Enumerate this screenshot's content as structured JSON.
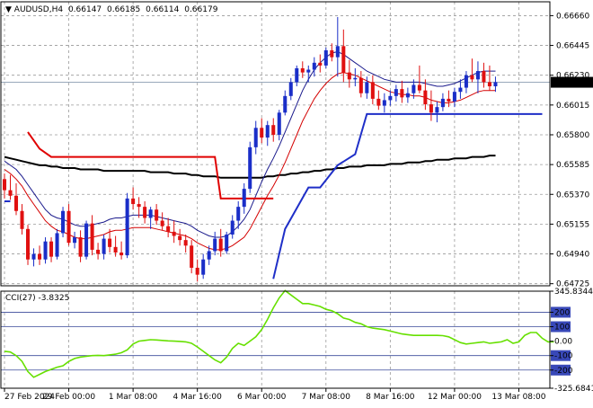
{
  "chart_data": [
    {
      "type": "candlestick",
      "header": {
        "symbol": "AUDUSD,H4",
        "values": [
          "0.66147",
          "0.66185",
          "0.66114",
          "0.66179"
        ]
      },
      "y_ticks": [
        "0.66660",
        "0.66445",
        "0.66230",
        "0.66015",
        "0.65800",
        "0.65585",
        "0.65370",
        "0.65155",
        "0.64940",
        "0.64725"
      ],
      "ylim": [
        0.6471,
        0.6676
      ],
      "current_price": "0.66179",
      "x_ticks": [
        "27 Feb 2024",
        "29 Feb 00:00",
        "1 Mar 08:00",
        "4 Mar 16:00",
        "6 Mar 00:00",
        "7 Mar 08:00",
        "8 Mar 16:00",
        "12 Mar 00:00",
        "13 Mar 08:00"
      ],
      "x_tick_bar_index": [
        0,
        11,
        22,
        33,
        44,
        55,
        66,
        77,
        88
      ],
      "candles": [
        [
          0.6548,
          0.6552,
          0.6534,
          0.654
        ],
        [
          0.654,
          0.6551,
          0.6533,
          0.6536
        ],
        [
          0.6536,
          0.6545,
          0.6522,
          0.6525
        ],
        [
          0.6525,
          0.653,
          0.6508,
          0.6512
        ],
        [
          0.6512,
          0.6515,
          0.6486,
          0.649
        ],
        [
          0.649,
          0.6498,
          0.6485,
          0.6494
        ],
        [
          0.6494,
          0.65,
          0.6486,
          0.649
        ],
        [
          0.649,
          0.6506,
          0.6487,
          0.6503
        ],
        [
          0.6503,
          0.6506,
          0.6488,
          0.6492
        ],
        [
          0.6492,
          0.6512,
          0.649,
          0.6509
        ],
        [
          0.6509,
          0.6528,
          0.6506,
          0.6525
        ],
        [
          0.6525,
          0.653,
          0.65,
          0.6502
        ],
        [
          0.6502,
          0.651,
          0.6498,
          0.6506
        ],
        [
          0.6506,
          0.6511,
          0.6488,
          0.6492
        ],
        [
          0.6492,
          0.6518,
          0.649,
          0.6516
        ],
        [
          0.6516,
          0.6522,
          0.6493,
          0.6497
        ],
        [
          0.6497,
          0.6502,
          0.649,
          0.6494
        ],
        [
          0.6494,
          0.6508,
          0.649,
          0.6505
        ],
        [
          0.6505,
          0.6512,
          0.6495,
          0.6499
        ],
        [
          0.6499,
          0.6507,
          0.6492,
          0.6495
        ],
        [
          0.6495,
          0.6503,
          0.649,
          0.6493
        ],
        [
          0.6493,
          0.6538,
          0.6491,
          0.6534
        ],
        [
          0.6534,
          0.6542,
          0.6526,
          0.653
        ],
        [
          0.653,
          0.6535,
          0.652,
          0.6528
        ],
        [
          0.6528,
          0.6532,
          0.6516,
          0.652
        ],
        [
          0.652,
          0.6528,
          0.6512,
          0.6526
        ],
        [
          0.6526,
          0.653,
          0.6515,
          0.6518
        ],
        [
          0.6518,
          0.6524,
          0.6511,
          0.6514
        ],
        [
          0.6514,
          0.652,
          0.6506,
          0.651
        ],
        [
          0.651,
          0.6518,
          0.6502,
          0.6507
        ],
        [
          0.6507,
          0.6512,
          0.65,
          0.6504
        ],
        [
          0.6504,
          0.6508,
          0.6495,
          0.65
        ],
        [
          0.65,
          0.6504,
          0.648,
          0.6484
        ],
        [
          0.6484,
          0.649,
          0.6474,
          0.6479
        ],
        [
          0.6479,
          0.6494,
          0.6476,
          0.649
        ],
        [
          0.649,
          0.65,
          0.6486,
          0.6496
        ],
        [
          0.6496,
          0.651,
          0.6493,
          0.6505
        ],
        [
          0.6505,
          0.6512,
          0.6492,
          0.6496
        ],
        [
          0.6496,
          0.651,
          0.6494,
          0.6508
        ],
        [
          0.6508,
          0.6522,
          0.6505,
          0.6518
        ],
        [
          0.6518,
          0.6532,
          0.6512,
          0.6528
        ],
        [
          0.6528,
          0.6545,
          0.6523,
          0.6541
        ],
        [
          0.6541,
          0.6575,
          0.6538,
          0.6571
        ],
        [
          0.6571,
          0.659,
          0.6566,
          0.6585
        ],
        [
          0.6585,
          0.6592,
          0.6574,
          0.6578
        ],
        [
          0.6578,
          0.659,
          0.6572,
          0.6587
        ],
        [
          0.6587,
          0.6592,
          0.6575,
          0.658
        ],
        [
          0.658,
          0.6598,
          0.6576,
          0.6596
        ],
        [
          0.6596,
          0.6612,
          0.6594,
          0.6608
        ],
        [
          0.6608,
          0.6621,
          0.6605,
          0.6618
        ],
        [
          0.6618,
          0.663,
          0.6615,
          0.6628
        ],
        [
          0.6628,
          0.6633,
          0.6621,
          0.6625
        ],
        [
          0.6625,
          0.663,
          0.6618,
          0.6627
        ],
        [
          0.6627,
          0.6636,
          0.6622,
          0.6632
        ],
        [
          0.6632,
          0.6638,
          0.6625,
          0.663
        ],
        [
          0.663,
          0.6643,
          0.6628,
          0.6641
        ],
        [
          0.6641,
          0.6646,
          0.6633,
          0.6636
        ],
        [
          0.6636,
          0.6665,
          0.6622,
          0.6644
        ],
        [
          0.6644,
          0.6656,
          0.6618,
          0.6625
        ],
        [
          0.6625,
          0.6634,
          0.6614,
          0.662
        ],
        [
          0.662,
          0.6628,
          0.6615,
          0.6621
        ],
        [
          0.6621,
          0.6626,
          0.6607,
          0.661
        ],
        [
          0.661,
          0.6622,
          0.6606,
          0.6618
        ],
        [
          0.6618,
          0.6623,
          0.6602,
          0.6606
        ],
        [
          0.6606,
          0.6612,
          0.6598,
          0.6601
        ],
        [
          0.6601,
          0.661,
          0.6596,
          0.6605
        ],
        [
          0.6605,
          0.6612,
          0.6601,
          0.6608
        ],
        [
          0.6608,
          0.6616,
          0.6604,
          0.6613
        ],
        [
          0.6613,
          0.6619,
          0.6603,
          0.6607
        ],
        [
          0.6607,
          0.6614,
          0.6603,
          0.661
        ],
        [
          0.661,
          0.662,
          0.6606,
          0.6616
        ],
        [
          0.6616,
          0.663,
          0.661,
          0.6612
        ],
        [
          0.6612,
          0.662,
          0.6598,
          0.6602
        ],
        [
          0.6602,
          0.6612,
          0.659,
          0.6596
        ],
        [
          0.6596,
          0.6604,
          0.6589,
          0.66
        ],
        [
          0.66,
          0.661,
          0.6597,
          0.6606
        ],
        [
          0.6606,
          0.6612,
          0.66,
          0.6604
        ],
        [
          0.6604,
          0.6614,
          0.66,
          0.6611
        ],
        [
          0.6611,
          0.662,
          0.6606,
          0.6614
        ],
        [
          0.6614,
          0.6626,
          0.661,
          0.6623
        ],
        [
          0.6623,
          0.6635,
          0.6618,
          0.662
        ],
        [
          0.662,
          0.6633,
          0.661,
          0.6626
        ],
        [
          0.6626,
          0.6632,
          0.6614,
          0.6618
        ],
        [
          0.6618,
          0.663,
          0.6612,
          0.6615
        ],
        [
          0.6615,
          0.6622,
          0.6611,
          0.6618
        ]
      ],
      "series": [
        {
          "color": "#000000",
          "values": [
            0.6564,
            0.6563,
            0.6562,
            0.6561,
            0.656,
            0.6559,
            0.6558,
            0.6558,
            0.6557,
            0.6557,
            0.6556,
            0.6556,
            0.6556,
            0.6555,
            0.6555,
            0.6555,
            0.6555,
            0.6554,
            0.6554,
            0.6554,
            0.6554,
            0.6554,
            0.6554,
            0.6554,
            0.6554,
            0.6553,
            0.6553,
            0.6553,
            0.6553,
            0.6552,
            0.6552,
            0.6552,
            0.6551,
            0.6551,
            0.655,
            0.655,
            0.655,
            0.6549,
            0.6549,
            0.6549,
            0.6549,
            0.6549,
            0.6549,
            0.6549,
            0.6549,
            0.655,
            0.655,
            0.6551,
            0.6551,
            0.6552,
            0.6552,
            0.6553,
            0.6553,
            0.6554,
            0.6554,
            0.6555,
            0.6555,
            0.6556,
            0.6556,
            0.6557,
            0.6557,
            0.6557,
            0.6558,
            0.6558,
            0.6558,
            0.6558,
            0.6559,
            0.6559,
            0.6559,
            0.656,
            0.656,
            0.656,
            0.6561,
            0.6561,
            0.6562,
            0.6562,
            0.6562,
            0.6563,
            0.6563,
            0.6563,
            0.6564,
            0.6564,
            0.6564,
            0.6565,
            0.6565
          ]
        },
        {
          "color": "#d40000",
          "values": [
            0.6555,
            0.6552,
            0.6548,
            0.6543,
            0.6536,
            0.653,
            0.6524,
            0.6518,
            0.6514,
            0.6511,
            0.651,
            0.6508,
            0.6506,
            0.6505,
            0.6505,
            0.6506,
            0.6507,
            0.6508,
            0.651,
            0.6511,
            0.6511,
            0.6512,
            0.6513,
            0.6513,
            0.6513,
            0.6513,
            0.6512,
            0.6511,
            0.651,
            0.6509,
            0.6508,
            0.6507,
            0.6505,
            0.6502,
            0.65,
            0.6498,
            0.6497,
            0.6497,
            0.6498,
            0.65,
            0.6503,
            0.6506,
            0.6512,
            0.652,
            0.6528,
            0.6536,
            0.6543,
            0.6551,
            0.656,
            0.657,
            0.658,
            0.659,
            0.6598,
            0.6606,
            0.6612,
            0.6617,
            0.6621,
            0.6624,
            0.6625,
            0.6624,
            0.6623,
            0.6621,
            0.6619,
            0.6617,
            0.6615,
            0.6613,
            0.6611,
            0.661,
            0.6609,
            0.6609,
            0.6608,
            0.6608,
            0.6607,
            0.6605,
            0.6604,
            0.6603,
            0.6603,
            0.6604,
            0.6605,
            0.6607,
            0.6609,
            0.6611,
            0.6612,
            0.6612,
            0.6612
          ]
        },
        {
          "color": "#1a1a8c",
          "values": [
            0.6561,
            0.6558,
            0.6555,
            0.655,
            0.6544,
            0.6538,
            0.6532,
            0.6526,
            0.6522,
            0.652,
            0.6519,
            0.6517,
            0.6515,
            0.6514,
            0.6514,
            0.6515,
            0.6516,
            0.6517,
            0.6519,
            0.652,
            0.652,
            0.6521,
            0.6522,
            0.6522,
            0.6522,
            0.6522,
            0.6521,
            0.652,
            0.6519,
            0.6518,
            0.6517,
            0.6516,
            0.6514,
            0.6511,
            0.6509,
            0.6507,
            0.6506,
            0.6506,
            0.6507,
            0.651,
            0.6514,
            0.6519,
            0.6526,
            0.6536,
            0.6546,
            0.6555,
            0.6563,
            0.6572,
            0.6582,
            0.6592,
            0.6602,
            0.6612,
            0.662,
            0.6627,
            0.6632,
            0.6636,
            0.6639,
            0.664,
            0.6638,
            0.6635,
            0.6632,
            0.6629,
            0.6626,
            0.6624,
            0.6622,
            0.662,
            0.6619,
            0.6618,
            0.6618,
            0.6618,
            0.6618,
            0.6618,
            0.6617,
            0.6616,
            0.6615,
            0.6615,
            0.6616,
            0.6617,
            0.6619,
            0.6621,
            0.6623,
            0.6625,
            0.6626,
            0.6626,
            0.6626
          ]
        }
      ],
      "stop_lines": [
        {
          "color": "#e00000",
          "points": [
            [
              4,
              0.6582
            ],
            [
              6,
              0.657
            ],
            [
              8,
              0.6564
            ],
            [
              36,
              0.6564
            ],
            [
              37,
              0.6534
            ],
            [
              46,
              0.6534
            ]
          ]
        },
        {
          "color": "#1f2fc8",
          "points": [
            [
              0,
              0.6532
            ],
            [
              1,
              0.6532
            ]
          ]
        },
        {
          "color": "#1f2fc8",
          "points": [
            [
              46,
              0.6476
            ],
            [
              48,
              0.6512
            ],
            [
              52,
              0.6542
            ],
            [
              54,
              0.6542
            ],
            [
              57,
              0.6558
            ],
            [
              60,
              0.6566
            ],
            [
              62,
              0.6595
            ],
            [
              64,
              0.6595
            ],
            [
              92,
              0.6595
            ]
          ]
        }
      ]
    },
    {
      "type": "line",
      "indicator_label": "CCI(27) -3.8325",
      "y_ticks": [
        "345.8344",
        "200",
        "100",
        "0.00",
        "-100",
        "-200",
        "-325.6841"
      ],
      "ylim": [
        -325.6841,
        345.8344
      ],
      "levels": [
        200,
        100,
        -100,
        -200
      ],
      "series": [
        {
          "color": "#66e000",
          "values": [
            -70,
            -75,
            -100,
            -140,
            -210,
            -250,
            -230,
            -210,
            -195,
            -180,
            -170,
            -140,
            -120,
            -110,
            -105,
            -100,
            -98,
            -100,
            -95,
            -90,
            -80,
            -60,
            -20,
            0,
            5,
            10,
            8,
            5,
            2,
            0,
            -2,
            -5,
            -15,
            -40,
            -70,
            -100,
            -130,
            -150,
            -110,
            -50,
            -15,
            -30,
            0,
            30,
            80,
            150,
            230,
            300,
            350,
            320,
            290,
            260,
            260,
            250,
            240,
            220,
            210,
            190,
            160,
            150,
            130,
            120,
            100,
            90,
            85,
            80,
            70,
            60,
            50,
            45,
            40,
            40,
            40,
            40,
            40,
            38,
            30,
            10,
            -10,
            -20,
            -15,
            -10,
            -5,
            -15,
            -10,
            -5,
            10,
            -15,
            -5,
            40,
            60,
            60,
            20,
            -5,
            -4
          ]
        }
      ]
    }
  ]
}
